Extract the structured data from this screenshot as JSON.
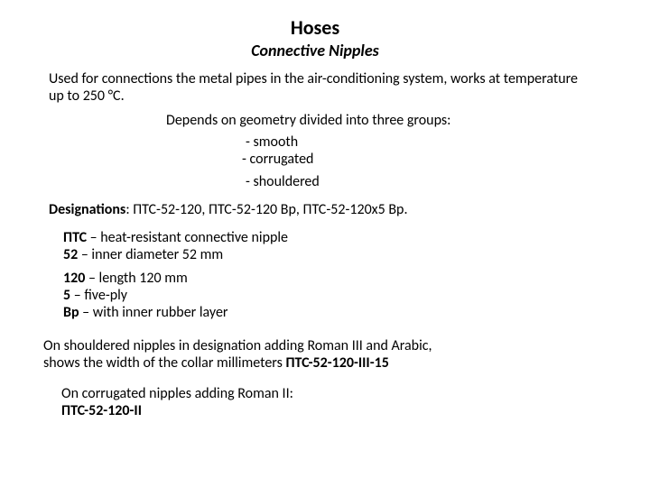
{
  "title": "Hoses",
  "subtitle": "Connective  Nipples",
  "intro": "Used for connections the metal pipes in the air-conditioning system, works at temperature up to 250 °С.",
  "depends": "Depends on geometry divided into three groups:",
  "groups": {
    "g1": "- smooth",
    "g2": "- corrugated",
    "g3": "- shouldered"
  },
  "designations": {
    "label": "Designations",
    "text": ": ПТС-52-120, ПТС-52-120 Вр, ПТС-52-120х5 Вр."
  },
  "defs": {
    "r1_term": "ПТС",
    "r1_text": " – heat-resistant connective nipple",
    "r2_term": "52",
    "r2_text": " –  inner  diameter 52 mm",
    "r3_term": "120",
    "r3_text": " – length 120 mm",
    "r4_term": "5",
    "r4_text": " – five-ply",
    "r5_term": "Вр",
    "r5_text": " – with inner rubber layer"
  },
  "shouldered": {
    "line1": " On shouldered nipples in designation adding Roman III and  Arabic,",
    "line2": "shows the width of the collar millimeters  ",
    "code": "ПТС-52-120-III-15"
  },
  "corrugated": {
    "line": "On corrugated nipples adding Roman II:",
    "code": "ПТС-52-120-II"
  }
}
